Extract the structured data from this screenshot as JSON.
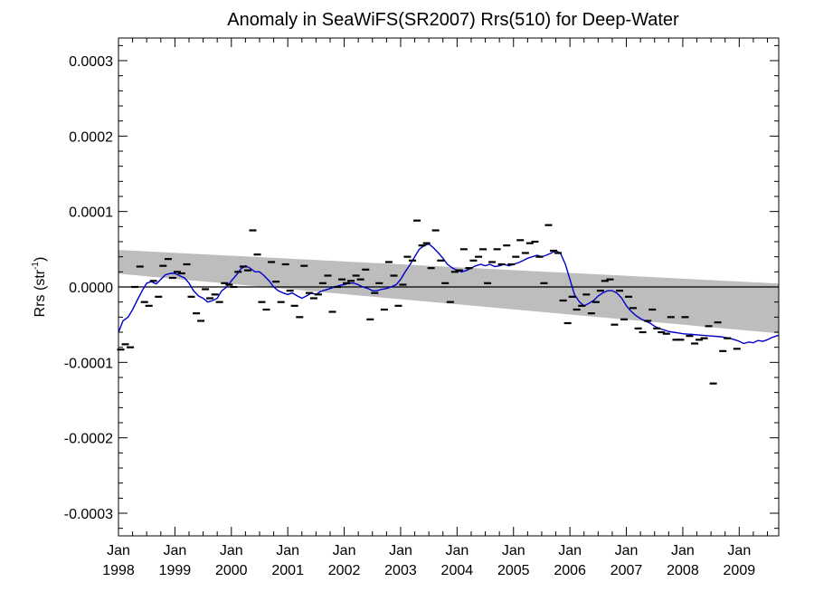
{
  "chart_data": {
    "type": "scatter",
    "title": "Anomaly in SeaWiFS(SR2007) Rrs(510) for Deep-Water",
    "xlabel": "",
    "ylabel_main": "Rrs (str",
    "ylabel_sup": "-1",
    "ylabel_close": ")",
    "xlim": [
      1998.0,
      2009.7
    ],
    "ylim": [
      -0.00033,
      0.00033
    ],
    "grid": false,
    "yticks": [
      {
        "value": -0.0003,
        "label": "-0.0003"
      },
      {
        "value": -0.0002,
        "label": "-0.0002"
      },
      {
        "value": -0.0001,
        "label": "-0.0001"
      },
      {
        "value": 0.0,
        "label": "0.0000"
      },
      {
        "value": 0.0001,
        "label": "0.0001"
      },
      {
        "value": 0.0002,
        "label": "0.0002"
      },
      {
        "value": 0.0003,
        "label": "0.0003"
      }
    ],
    "xticks": [
      {
        "value": 1998,
        "month": "Jan",
        "year": "1998"
      },
      {
        "value": 1999,
        "month": "Jan",
        "year": "1999"
      },
      {
        "value": 2000,
        "month": "Jan",
        "year": "2000"
      },
      {
        "value": 2001,
        "month": "Jan",
        "year": "2001"
      },
      {
        "value": 2002,
        "month": "Jan",
        "year": "2002"
      },
      {
        "value": 2003,
        "month": "Jan",
        "year": "2003"
      },
      {
        "value": 2004,
        "month": "Jan",
        "year": "2004"
      },
      {
        "value": 2005,
        "month": "Jan",
        "year": "2005"
      },
      {
        "value": 2006,
        "month": "Jan",
        "year": "2006"
      },
      {
        "value": 2007,
        "month": "Jan",
        "year": "2007"
      },
      {
        "value": 2008,
        "month": "Jan",
        "year": "2008"
      },
      {
        "value": 2009,
        "month": "Jan",
        "year": "2009"
      }
    ],
    "zero_line": 0.0,
    "trend_band": {
      "color": "#bdbdbd",
      "upper": [
        [
          1998.0,
          4.9e-05
        ],
        [
          2009.7,
          4.5e-06
        ]
      ],
      "lower": [
        [
          1998.0,
          1.75e-05
        ],
        [
          2009.7,
          -6.15e-05
        ]
      ]
    },
    "running_mean": {
      "color": "#0000cc",
      "points": [
        [
          1998.0,
          -6e-05
        ],
        [
          1998.08,
          -4.5e-05
        ],
        [
          1998.17,
          -4e-05
        ],
        [
          1998.25,
          -3e-05
        ],
        [
          1998.33,
          -1.8e-05
        ],
        [
          1998.42,
          -5e-06
        ],
        [
          1998.5,
          5e-06
        ],
        [
          1998.58,
          7e-06
        ],
        [
          1998.67,
          4e-06
        ],
        [
          1998.75,
          1e-05
        ],
        [
          1998.83,
          1.6e-05
        ],
        [
          1998.92,
          1.8e-05
        ],
        [
          1999.0,
          1.8e-05
        ],
        [
          1999.08,
          1.5e-05
        ],
        [
          1999.17,
          1.2e-05
        ],
        [
          1999.25,
          5e-06
        ],
        [
          1999.33,
          -5e-06
        ],
        [
          1999.42,
          -1.2e-05
        ],
        [
          1999.5,
          -1.5e-05
        ],
        [
          1999.58,
          -2e-05
        ],
        [
          1999.67,
          -1.8e-05
        ],
        [
          1999.75,
          -1.5e-05
        ],
        [
          1999.83,
          -5e-06
        ],
        [
          1999.92,
          0.0
        ],
        [
          2000.0,
          8e-06
        ],
        [
          2000.08,
          1.5e-05
        ],
        [
          2000.17,
          2.4e-05
        ],
        [
          2000.25,
          2.8e-05
        ],
        [
          2000.33,
          2.5e-05
        ],
        [
          2000.42,
          2e-05
        ],
        [
          2000.5,
          2e-05
        ],
        [
          2000.58,
          1.5e-05
        ],
        [
          2000.67,
          8e-06
        ],
        [
          2000.75,
          0.0
        ],
        [
          2000.83,
          -5e-06
        ],
        [
          2000.92,
          -8e-06
        ],
        [
          2001.0,
          -1e-05
        ],
        [
          2001.08,
          -8e-06
        ],
        [
          2001.17,
          -1.2e-05
        ],
        [
          2001.25,
          -1.5e-05
        ],
        [
          2001.33,
          -1.2e-05
        ],
        [
          2001.42,
          -8e-06
        ],
        [
          2001.5,
          -1e-05
        ],
        [
          2001.58,
          -6e-06
        ],
        [
          2001.67,
          -4e-06
        ],
        [
          2001.75,
          -2e-06
        ],
        [
          2001.83,
          0.0
        ],
        [
          2001.92,
          2e-06
        ],
        [
          2002.0,
          3e-06
        ],
        [
          2002.08,
          5e-06
        ],
        [
          2002.17,
          5e-06
        ],
        [
          2002.25,
          3e-06
        ],
        [
          2002.33,
          0.0
        ],
        [
          2002.42,
          -2e-06
        ],
        [
          2002.5,
          -5e-06
        ],
        [
          2002.58,
          -5e-06
        ],
        [
          2002.67,
          -3e-06
        ],
        [
          2002.75,
          -2e-06
        ],
        [
          2002.83,
          0.0
        ],
        [
          2002.92,
          3e-06
        ],
        [
          2003.0,
          1e-05
        ],
        [
          2003.08,
          2e-05
        ],
        [
          2003.17,
          3e-05
        ],
        [
          2003.25,
          4e-05
        ],
        [
          2003.33,
          5e-05
        ],
        [
          2003.42,
          5.5e-05
        ],
        [
          2003.5,
          5.7e-05
        ],
        [
          2003.58,
          5.2e-05
        ],
        [
          2003.67,
          4.5e-05
        ],
        [
          2003.75,
          3.8e-05
        ],
        [
          2003.83,
          3e-05
        ],
        [
          2003.92,
          2.5e-05
        ],
        [
          2004.0,
          2.2e-05
        ],
        [
          2004.08,
          2e-05
        ],
        [
          2004.17,
          2.2e-05
        ],
        [
          2004.25,
          2.5e-05
        ],
        [
          2004.33,
          2.8e-05
        ],
        [
          2004.42,
          3e-05
        ],
        [
          2004.5,
          2.8e-05
        ],
        [
          2004.58,
          3e-05
        ],
        [
          2004.67,
          2.7e-05
        ],
        [
          2004.75,
          2.8e-05
        ],
        [
          2004.83,
          3e-05
        ],
        [
          2004.92,
          2.8e-05
        ],
        [
          2005.0,
          3e-05
        ],
        [
          2005.08,
          3.2e-05
        ],
        [
          2005.17,
          3.5e-05
        ],
        [
          2005.25,
          3.8e-05
        ],
        [
          2005.33,
          4e-05
        ],
        [
          2005.42,
          4.2e-05
        ],
        [
          2005.5,
          4e-05
        ],
        [
          2005.58,
          4.2e-05
        ],
        [
          2005.67,
          4.5e-05
        ],
        [
          2005.75,
          4.8e-05
        ],
        [
          2005.83,
          4.5e-05
        ],
        [
          2005.92,
          3e-05
        ],
        [
          2006.0,
          1e-05
        ],
        [
          2006.08,
          -1e-05
        ],
        [
          2006.17,
          -2e-05
        ],
        [
          2006.25,
          -2.5e-05
        ],
        [
          2006.33,
          -2.2e-05
        ],
        [
          2006.42,
          -1.8e-05
        ],
        [
          2006.5,
          -1.2e-05
        ],
        [
          2006.58,
          -8e-06
        ],
        [
          2006.67,
          -5e-06
        ],
        [
          2006.75,
          -5e-06
        ],
        [
          2006.83,
          -8e-06
        ],
        [
          2006.92,
          -1.5e-05
        ],
        [
          2007.0,
          -2.5e-05
        ],
        [
          2007.08,
          -3.2e-05
        ],
        [
          2007.17,
          -3.8e-05
        ],
        [
          2007.25,
          -4.2e-05
        ],
        [
          2007.33,
          -4.5e-05
        ],
        [
          2007.42,
          -4.8e-05
        ],
        [
          2007.5,
          -5.2e-05
        ],
        [
          2007.58,
          -5.5e-05
        ],
        [
          2007.67,
          -5.7e-05
        ],
        [
          2007.75,
          -5.9e-05
        ],
        [
          2007.83,
          -6e-05
        ],
        [
          2007.92,
          -6.1e-05
        ],
        [
          2008.0,
          -6.2e-05
        ],
        [
          2008.17,
          -6.3e-05
        ],
        [
          2008.33,
          -6.4e-05
        ],
        [
          2008.5,
          -6.5e-05
        ],
        [
          2008.67,
          -6.6e-05
        ],
        [
          2008.83,
          -6.8e-05
        ],
        [
          2008.92,
          -7e-05
        ],
        [
          2009.0,
          -7.2e-05
        ],
        [
          2009.08,
          -7.5e-05
        ],
        [
          2009.17,
          -7.3e-05
        ],
        [
          2009.25,
          -7.4e-05
        ],
        [
          2009.33,
          -7.1e-05
        ],
        [
          2009.42,
          -7.2e-05
        ],
        [
          2009.5,
          -7e-05
        ],
        [
          2009.58,
          -6.7e-05
        ],
        [
          2009.7,
          -6.4e-05
        ]
      ]
    },
    "monthly_points": {
      "color": "#000000",
      "points": [
        [
          1998.04,
          -8.3e-05
        ],
        [
          1998.12,
          -7.6e-05
        ],
        [
          1998.21,
          -8e-05
        ],
        [
          1998.29,
          0.0
        ],
        [
          1998.38,
          2.7e-05
        ],
        [
          1998.46,
          -2e-05
        ],
        [
          1998.54,
          -2.5e-05
        ],
        [
          1998.62,
          8e-06
        ],
        [
          1998.71,
          -1.3e-05
        ],
        [
          1998.79,
          2.8e-05
        ],
        [
          1998.88,
          3.7e-05
        ],
        [
          1998.96,
          1.2e-05
        ],
        [
          1999.04,
          2e-05
        ],
        [
          1999.12,
          1.8e-05
        ],
        [
          1999.21,
          3e-05
        ],
        [
          1999.29,
          -1.3e-05
        ],
        [
          1999.38,
          -3.5e-05
        ],
        [
          1999.46,
          -4.5e-05
        ],
        [
          1999.54,
          -3e-06
        ],
        [
          1999.62,
          -1.5e-05
        ],
        [
          1999.71,
          -1e-05
        ],
        [
          1999.79,
          -2e-05
        ],
        [
          1999.88,
          5e-06
        ],
        [
          1999.96,
          3e-06
        ],
        [
          2000.04,
          0.0
        ],
        [
          2000.12,
          2e-05
        ],
        [
          2000.21,
          2.7e-05
        ],
        [
          2000.29,
          2.2e-05
        ],
        [
          2000.38,
          7.5e-05
        ],
        [
          2000.46,
          4.3e-05
        ],
        [
          2000.54,
          -2e-05
        ],
        [
          2000.62,
          -3e-05
        ],
        [
          2000.71,
          3.3e-05
        ],
        [
          2000.79,
          7e-06
        ],
        [
          2000.88,
          -2e-05
        ],
        [
          2000.96,
          3e-05
        ],
        [
          2001.04,
          -5e-06
        ],
        [
          2001.12,
          -2.5e-05
        ],
        [
          2001.21,
          -4e-05
        ],
        [
          2001.29,
          2.8e-05
        ],
        [
          2001.38,
          -8e-06
        ],
        [
          2001.46,
          -1.5e-05
        ],
        [
          2001.54,
          -1e-05
        ],
        [
          2001.62,
          5e-06
        ],
        [
          2001.71,
          1.5e-05
        ],
        [
          2001.79,
          -3.3e-05
        ],
        [
          2001.88,
          0.0
        ],
        [
          2001.96,
          1e-05
        ],
        [
          2002.04,
          5e-06
        ],
        [
          2002.12,
          8e-06
        ],
        [
          2002.21,
          1.5e-05
        ],
        [
          2002.29,
          1e-05
        ],
        [
          2002.38,
          2.3e-05
        ],
        [
          2002.46,
          -4.3e-05
        ],
        [
          2002.54,
          -8e-06
        ],
        [
          2002.62,
          5e-06
        ],
        [
          2002.71,
          -3e-05
        ],
        [
          2002.79,
          3.3e-05
        ],
        [
          2002.88,
          1.5e-05
        ],
        [
          2002.96,
          -2.5e-05
        ],
        [
          2003.04,
          3e-06
        ],
        [
          2003.12,
          4e-05
        ],
        [
          2003.21,
          3.5e-05
        ],
        [
          2003.29,
          8.8e-05
        ],
        [
          2003.38,
          5.5e-05
        ],
        [
          2003.46,
          5.8e-05
        ],
        [
          2003.54,
          2.5e-05
        ],
        [
          2003.62,
          7.5e-05
        ],
        [
          2003.71,
          3.5e-05
        ],
        [
          2003.79,
          5e-06
        ],
        [
          2003.88,
          -2e-05
        ],
        [
          2003.96,
          2e-05
        ],
        [
          2004.04,
          2.2e-05
        ],
        [
          2004.12,
          5e-05
        ],
        [
          2004.21,
          2.5e-05
        ],
        [
          2004.29,
          3.5e-05
        ],
        [
          2004.38,
          4e-05
        ],
        [
          2004.46,
          5e-05
        ],
        [
          2004.54,
          5e-06
        ],
        [
          2004.62,
          3.3e-05
        ],
        [
          2004.71,
          5e-05
        ],
        [
          2004.79,
          3e-05
        ],
        [
          2004.88,
          5.5e-05
        ],
        [
          2004.96,
          3e-05
        ],
        [
          2005.04,
          4e-05
        ],
        [
          2005.12,
          6.2e-05
        ],
        [
          2005.21,
          4.5e-05
        ],
        [
          2005.29,
          5.8e-05
        ],
        [
          2005.38,
          6e-05
        ],
        [
          2005.46,
          4e-05
        ],
        [
          2005.54,
          5e-06
        ],
        [
          2005.62,
          8.2e-05
        ],
        [
          2005.71,
          4.8e-05
        ],
        [
          2005.79,
          4.5e-05
        ],
        [
          2005.88,
          -1.8e-05
        ],
        [
          2005.96,
          -4.8e-05
        ],
        [
          2006.04,
          -1.3e-05
        ],
        [
          2006.12,
          -3e-05
        ],
        [
          2006.21,
          -2.5e-05
        ],
        [
          2006.29,
          -1e-05
        ],
        [
          2006.38,
          -3.5e-05
        ],
        [
          2006.46,
          -2e-05
        ],
        [
          2006.54,
          -5e-06
        ],
        [
          2006.62,
          8e-06
        ],
        [
          2006.71,
          1e-05
        ],
        [
          2006.79,
          -5e-05
        ],
        [
          2006.88,
          -5e-06
        ],
        [
          2006.96,
          -4.3e-05
        ],
        [
          2007.04,
          -1.3e-05
        ],
        [
          2007.12,
          -2.8e-05
        ],
        [
          2007.21,
          -5.5e-05
        ],
        [
          2007.29,
          -6e-05
        ],
        [
          2007.38,
          -4.5e-05
        ],
        [
          2007.46,
          -3e-05
        ],
        [
          2007.54,
          -5.5e-05
        ],
        [
          2007.62,
          -6e-05
        ],
        [
          2007.71,
          -6.2e-05
        ],
        [
          2007.79,
          -4e-05
        ],
        [
          2007.88,
          -7e-05
        ],
        [
          2007.96,
          -7e-05
        ],
        [
          2008.04,
          -4e-05
        ],
        [
          2008.12,
          -6.5e-05
        ],
        [
          2008.21,
          -7.5e-05
        ],
        [
          2008.29,
          -7e-05
        ],
        [
          2008.38,
          -6.8e-05
        ],
        [
          2008.46,
          -5.2e-05
        ],
        [
          2008.54,
          -0.000128
        ],
        [
          2008.62,
          -4.7e-05
        ],
        [
          2008.71,
          -8.5e-05
        ],
        [
          2008.79,
          -6.8e-05
        ],
        [
          2008.96,
          -8.2e-05
        ]
      ]
    }
  }
}
